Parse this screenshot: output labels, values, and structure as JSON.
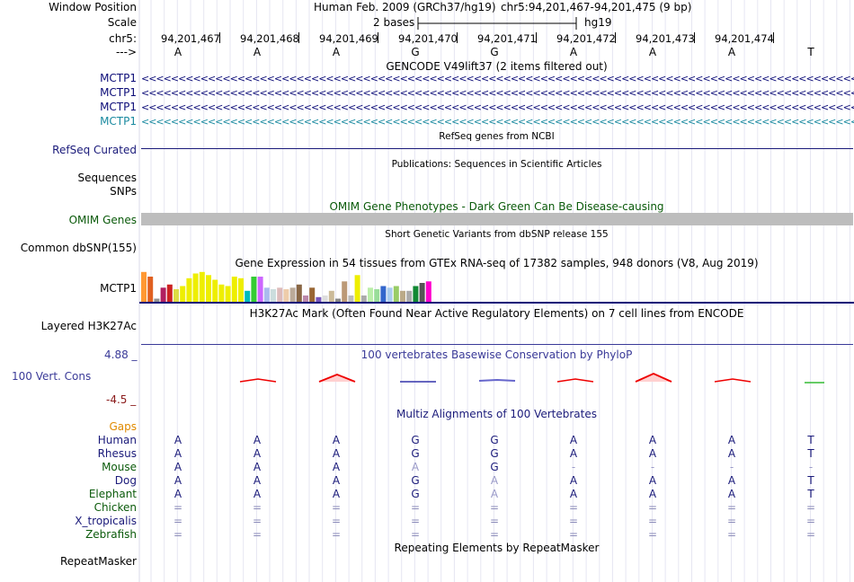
{
  "header": {
    "window_position_label": "Window Position",
    "scale_label": "Scale",
    "chrom_label": "chr5:",
    "strand_label": "--->",
    "assembly": "Human Feb. 2009 (GRCh37/hg19)",
    "position": "chr5:94,201,467-94,201,475 (9 bp)",
    "scale_text": "2 bases",
    "scale_db": "hg19",
    "coordinates": [
      "94,201,467",
      "94,201,468",
      "94,201,469",
      "94,201,470",
      "94,201,471",
      "94,201,472",
      "94,201,473",
      "94,201,474"
    ],
    "bases": [
      "A",
      "A",
      "A",
      "G",
      "G",
      "A",
      "A",
      "A",
      "T"
    ]
  },
  "gencode": {
    "title": "GENCODE V49lift37 (2 items filtered out)",
    "genes": [
      {
        "name": "MCTP1",
        "color": "#0c0c78"
      },
      {
        "name": "MCTP1",
        "color": "#0c0c78"
      },
      {
        "name": "MCTP1",
        "color": "#0c0c78"
      },
      {
        "name": "MCTP1",
        "color": "#1a8aa0"
      }
    ],
    "strand_glyph": "<<<<<<<<<<<<<<<<<<<<<<<<<<<<<<<<<<<<<<<<<<<<<<<<<<<<<<<<<<<<<<<<<<<<<<<<<<<<<<<<<<<<<<<<<<<<<<<<<<<<<<<<<<<<<<<<<<<<<<<<<<<<<<<<<<<<<"
  },
  "refseq": {
    "label": "RefSeq Curated",
    "title": "RefSeq genes from NCBI"
  },
  "publications": {
    "title": "Publications: Sequences in Scientific Articles",
    "label1": "Sequences",
    "label2": "SNPs"
  },
  "omim": {
    "title": "OMIM Gene Phenotypes - Dark Green Can Be Disease-causing",
    "label": "OMIM Genes"
  },
  "dbsnp": {
    "title": "Short Genetic Variants from dbSNP release 155",
    "label": "Common dbSNP(155)"
  },
  "gtex": {
    "title": "Gene Expression in 54 tissues from GTEx RNA-seq of 17382 samples, 948 donors (V8, Aug 2019)",
    "label": "MCTP1",
    "bars": [
      {
        "v": 0.95,
        "c": "#ff9933"
      },
      {
        "v": 0.8,
        "c": "#e06020"
      },
      {
        "v": 0.1,
        "c": "#909090"
      },
      {
        "v": 0.45,
        "c": "#b02060"
      },
      {
        "v": 0.55,
        "c": "#cc2222"
      },
      {
        "v": 0.4,
        "c": "#dddd44"
      },
      {
        "v": 0.5,
        "c": "#eeee00"
      },
      {
        "v": 0.75,
        "c": "#eeee00"
      },
      {
        "v": 0.9,
        "c": "#eeee00"
      },
      {
        "v": 0.95,
        "c": "#eeee00"
      },
      {
        "v": 0.85,
        "c": "#eeee00"
      },
      {
        "v": 0.7,
        "c": "#eeee00"
      },
      {
        "v": 0.55,
        "c": "#eeee00"
      },
      {
        "v": 0.5,
        "c": "#eeee00"
      },
      {
        "v": 0.8,
        "c": "#eeee00"
      },
      {
        "v": 0.75,
        "c": "#eeee00"
      },
      {
        "v": 0.35,
        "c": "#00bbbb"
      },
      {
        "v": 0.8,
        "c": "#33cc33"
      },
      {
        "v": 0.8,
        "c": "#cc66ff"
      },
      {
        "v": 0.45,
        "c": "#aabbee"
      },
      {
        "v": 0.4,
        "c": "#ccdddd"
      },
      {
        "v": 0.45,
        "c": "#ddbbbb"
      },
      {
        "v": 0.4,
        "c": "#eeccaa"
      },
      {
        "v": 0.45,
        "c": "#bbaa99"
      },
      {
        "v": 0.55,
        "c": "#886644"
      },
      {
        "v": 0.2,
        "c": "#bb88aa"
      },
      {
        "v": 0.45,
        "c": "#996633"
      },
      {
        "v": 0.15,
        "c": "#7755bb"
      },
      {
        "v": 0.2,
        "c": "#dddddd"
      },
      {
        "v": 0.35,
        "c": "#ccbb99"
      },
      {
        "v": 0.1,
        "c": "#888888"
      },
      {
        "v": 0.65,
        "c": "#bb9977"
      },
      {
        "v": 0.2,
        "c": "#bbbbbb"
      },
      {
        "v": 0.85,
        "c": "#eeee00"
      },
      {
        "v": 0.2,
        "c": "#aaaaaa"
      },
      {
        "v": 0.45,
        "c": "#bbeeaa"
      },
      {
        "v": 0.4,
        "c": "#99dd99"
      },
      {
        "v": 0.5,
        "c": "#3366cc"
      },
      {
        "v": 0.45,
        "c": "#aaccee"
      },
      {
        "v": 0.5,
        "c": "#99cc66"
      },
      {
        "v": 0.35,
        "c": "#bbaa88"
      },
      {
        "v": 0.35,
        "c": "#aaaaaa"
      },
      {
        "v": 0.5,
        "c": "#118833"
      },
      {
        "v": 0.6,
        "c": "#555555"
      },
      {
        "v": 0.65,
        "c": "#ff00cc"
      }
    ]
  },
  "h3k27ac": {
    "title": "H3K27Ac Mark (Often Found Near Active Regulatory Elements) on 7 cell lines from ENCODE",
    "label": "Layered H3K27Ac"
  },
  "phylop": {
    "title": "100 vertebrates Basewise Conservation by PhyloP",
    "label": "100 Vert. Cons",
    "max": "4.88 _",
    "min": "-4.5 _"
  },
  "multiz": {
    "title": "Multiz Alignments of 100 Vertebrates",
    "gaps_label": "Gaps",
    "species": [
      {
        "name": "Human",
        "color": "#1a1a7a",
        "bases": [
          "A",
          "A",
          "A",
          "G",
          "G",
          "A",
          "A",
          "A",
          "T"
        ],
        "dim": []
      },
      {
        "name": "Rhesus",
        "color": "#1a1a7a",
        "bases": [
          "A",
          "A",
          "A",
          "G",
          "G",
          "A",
          "A",
          "A",
          "T"
        ],
        "dim": []
      },
      {
        "name": "Mouse",
        "color": "#0a5a0a",
        "bases": [
          "A",
          "A",
          "A",
          "A",
          "G",
          "-",
          "-",
          "-",
          "-"
        ],
        "dim": [
          3,
          5,
          6,
          7,
          8
        ]
      },
      {
        "name": "Dog",
        "color": "#1a1a7a",
        "bases": [
          "A",
          "A",
          "A",
          "G",
          "A",
          "A",
          "A",
          "A",
          "T"
        ],
        "dim": [
          4
        ]
      },
      {
        "name": "Elephant",
        "color": "#0a5a0a",
        "bases": [
          "A",
          "A",
          "A",
          "G",
          "A",
          "A",
          "A",
          "A",
          "T"
        ],
        "dim": [
          4
        ]
      },
      {
        "name": "Chicken",
        "color": "#0a5a0a",
        "bases": [
          "=",
          "=",
          "=",
          "=",
          "=",
          "=",
          "=",
          "=",
          "="
        ],
        "dim": [
          0,
          1,
          2,
          3,
          4,
          5,
          6,
          7,
          8
        ]
      },
      {
        "name": "X_tropicalis",
        "color": "#1a1a7a",
        "bases": [
          "=",
          "=",
          "=",
          "=",
          "=",
          "=",
          "=",
          "=",
          "="
        ],
        "dim": [
          0,
          1,
          2,
          3,
          4,
          5,
          6,
          7,
          8
        ]
      },
      {
        "name": "Zebrafish",
        "color": "#0a5a0a",
        "bases": [
          "=",
          "=",
          "=",
          "=",
          "=",
          "=",
          "=",
          "=",
          "="
        ],
        "dim": [
          0,
          1,
          2,
          3,
          4,
          5,
          6,
          7,
          8
        ]
      }
    ]
  },
  "repeatmasker": {
    "title": "Repeating Elements by RepeatMasker",
    "label": "RepeatMasker"
  }
}
